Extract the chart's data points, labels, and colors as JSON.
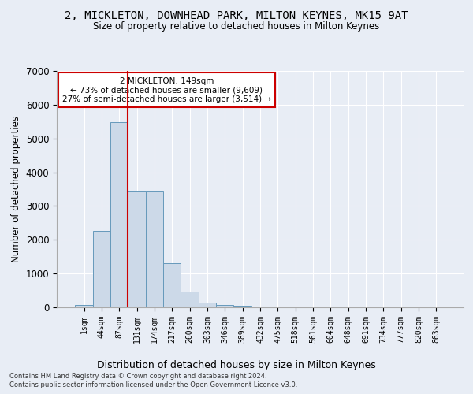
{
  "title1": "2, MICKLETON, DOWNHEAD PARK, MILTON KEYNES, MK15 9AT",
  "title2": "Size of property relative to detached houses in Milton Keynes",
  "xlabel": "Distribution of detached houses by size in Milton Keynes",
  "ylabel": "Number of detached properties",
  "footnote1": "Contains HM Land Registry data © Crown copyright and database right 2024.",
  "footnote2": "Contains public sector information licensed under the Open Government Licence v3.0.",
  "bar_labels": [
    "1sqm",
    "44sqm",
    "87sqm",
    "131sqm",
    "174sqm",
    "217sqm",
    "260sqm",
    "303sqm",
    "346sqm",
    "389sqm",
    "432sqm",
    "475sqm",
    "518sqm",
    "561sqm",
    "604sqm",
    "648sqm",
    "691sqm",
    "734sqm",
    "777sqm",
    "820sqm",
    "863sqm"
  ],
  "bar_values": [
    80,
    2270,
    5480,
    3440,
    3440,
    1310,
    460,
    150,
    80,
    50,
    0,
    0,
    0,
    0,
    0,
    0,
    0,
    0,
    0,
    0,
    0
  ],
  "bar_color": "#ccd9e8",
  "bar_edge_color": "#6699bb",
  "ylim": [
    0,
    7000
  ],
  "yticks": [
    0,
    1000,
    2000,
    3000,
    4000,
    5000,
    6000,
    7000
  ],
  "vline_index": 3,
  "vline_color": "#cc0000",
  "annotation_text": "2 MICKLETON: 149sqm\n← 73% of detached houses are smaller (9,609)\n27% of semi-detached houses are larger (3,514) →",
  "bg_color": "#e8edf5",
  "plot_bg_color": "#e8edf5",
  "grid_color": "#ffffff"
}
